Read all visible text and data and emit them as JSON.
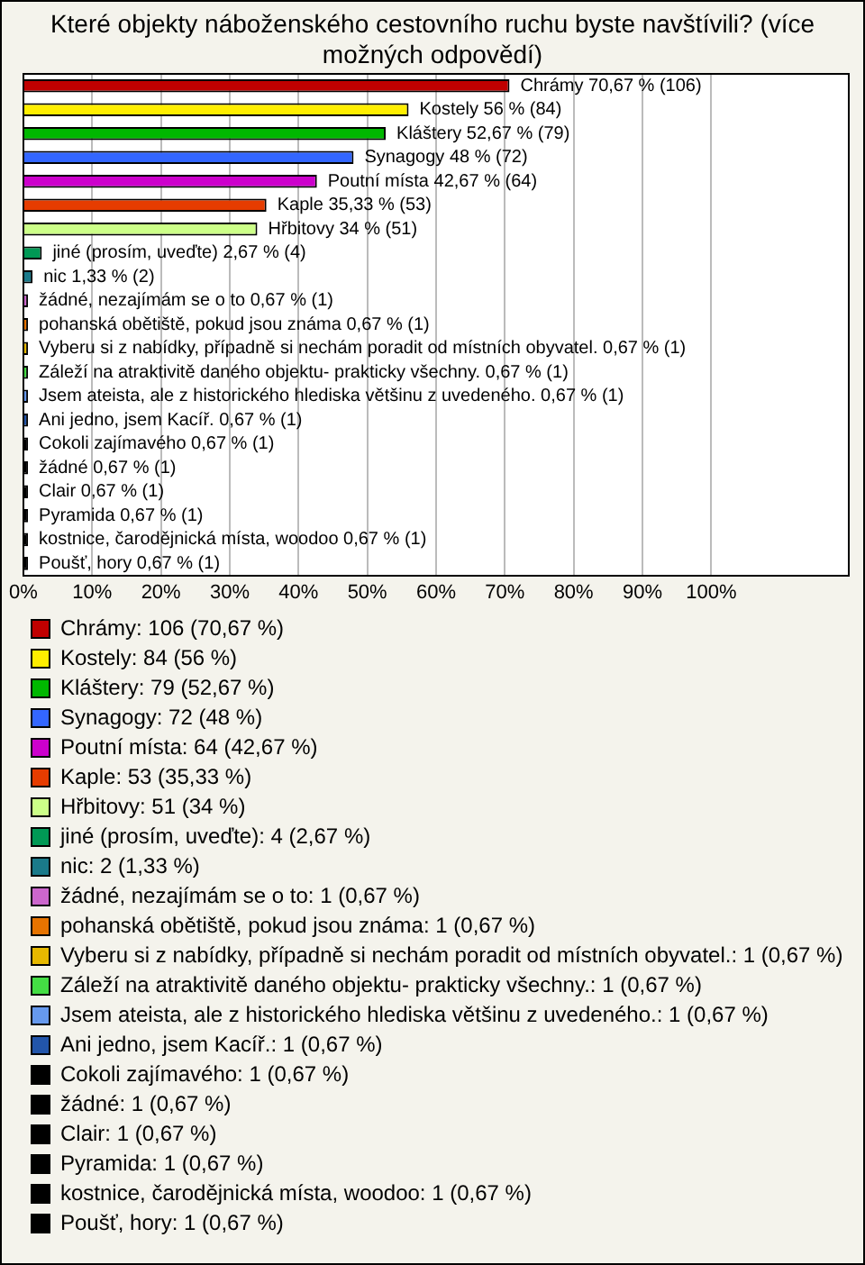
{
  "chart_data": {
    "type": "bar",
    "orientation": "horizontal",
    "stacked": true,
    "title": "Které objekty náboženského cestovního ruchu byste navštívili? (více možných odpovědí)",
    "categories": [
      null,
      null,
      null,
      null,
      null,
      null,
      null,
      null,
      null,
      null,
      null,
      null,
      null,
      null,
      null,
      null,
      null,
      null,
      null,
      null,
      null
    ],
    "series": [
      {
        "name": "Chrámy: 106 (70,67 %)",
        "color": "#c00000",
        "values": [
          70.67,
          null,
          null,
          null,
          null,
          null,
          null,
          null,
          null,
          null,
          null,
          null,
          null,
          null,
          null,
          null,
          null,
          null,
          null,
          null,
          null
        ],
        "value_labels": [
          "Chrámy 70,67 % (106)",
          null,
          null,
          null,
          null,
          null,
          null,
          null,
          null,
          null,
          null,
          null,
          null,
          null,
          null,
          null,
          null,
          null,
          null,
          null,
          null
        ]
      },
      {
        "name": "Kostely: 84 (56 %)",
        "color": "#ffee00",
        "values": [
          null,
          56,
          null,
          null,
          null,
          null,
          null,
          null,
          null,
          null,
          null,
          null,
          null,
          null,
          null,
          null,
          null,
          null,
          null,
          null,
          null
        ],
        "value_labels": [
          null,
          "Kostely 56 % (84)",
          null,
          null,
          null,
          null,
          null,
          null,
          null,
          null,
          null,
          null,
          null,
          null,
          null,
          null,
          null,
          null,
          null,
          null,
          null
        ]
      },
      {
        "name": "Kláštery: 79 (52,67 %)",
        "color": "#00b800",
        "values": [
          null,
          null,
          52.67,
          null,
          null,
          null,
          null,
          null,
          null,
          null,
          null,
          null,
          null,
          null,
          null,
          null,
          null,
          null,
          null,
          null,
          null
        ],
        "value_labels": [
          null,
          null,
          "Kláštery 52,67 % (79)",
          null,
          null,
          null,
          null,
          null,
          null,
          null,
          null,
          null,
          null,
          null,
          null,
          null,
          null,
          null,
          null,
          null,
          null
        ]
      },
      {
        "name": "Synagogy: 72 (48 %)",
        "color": "#3366ff",
        "values": [
          null,
          null,
          null,
          48,
          null,
          null,
          null,
          null,
          null,
          null,
          null,
          null,
          null,
          null,
          null,
          null,
          null,
          null,
          null,
          null,
          null
        ],
        "value_labels": [
          null,
          null,
          null,
          "Synagogy 48 % (72)",
          null,
          null,
          null,
          null,
          null,
          null,
          null,
          null,
          null,
          null,
          null,
          null,
          null,
          null,
          null,
          null,
          null
        ]
      },
      {
        "name": "Poutní místa: 64 (42,67 %)",
        "color": "#cc00cc",
        "values": [
          null,
          null,
          null,
          null,
          42.67,
          null,
          null,
          null,
          null,
          null,
          null,
          null,
          null,
          null,
          null,
          null,
          null,
          null,
          null,
          null,
          null
        ],
        "value_labels": [
          null,
          null,
          null,
          null,
          "Poutní místa 42,67 % (64)",
          null,
          null,
          null,
          null,
          null,
          null,
          null,
          null,
          null,
          null,
          null,
          null,
          null,
          null,
          null,
          null
        ]
      },
      {
        "name": "Kaple: 53 (35,33 %)",
        "color": "#e63c00",
        "values": [
          null,
          null,
          null,
          null,
          null,
          35.33,
          null,
          null,
          null,
          null,
          null,
          null,
          null,
          null,
          null,
          null,
          null,
          null,
          null,
          null,
          null
        ],
        "value_labels": [
          null,
          null,
          null,
          null,
          null,
          "Kaple 35,33 % (53)",
          null,
          null,
          null,
          null,
          null,
          null,
          null,
          null,
          null,
          null,
          null,
          null,
          null,
          null,
          null
        ]
      },
      {
        "name": "Hřbitovy: 51 (34 %)",
        "color": "#ccff88",
        "values": [
          null,
          null,
          null,
          null,
          null,
          null,
          34,
          null,
          null,
          null,
          null,
          null,
          null,
          null,
          null,
          null,
          null,
          null,
          null,
          null,
          null
        ],
        "value_labels": [
          null,
          null,
          null,
          null,
          null,
          null,
          "Hřbitovy 34 % (51)",
          null,
          null,
          null,
          null,
          null,
          null,
          null,
          null,
          null,
          null,
          null,
          null,
          null,
          null
        ]
      },
      {
        "name": "jiné (prosím, uveďte): 4 (2,67 %)",
        "color": "#009955",
        "values": [
          null,
          null,
          null,
          null,
          null,
          null,
          null,
          2.67,
          null,
          null,
          null,
          null,
          null,
          null,
          null,
          null,
          null,
          null,
          null,
          null,
          null
        ],
        "value_labels": [
          null,
          null,
          null,
          null,
          null,
          null,
          null,
          "jiné (prosím, uveďte) 2,67 % (4)",
          null,
          null,
          null,
          null,
          null,
          null,
          null,
          null,
          null,
          null,
          null,
          null,
          null
        ]
      },
      {
        "name": "nic: 2 (1,33 %)",
        "color": "#1a7a8a",
        "values": [
          null,
          null,
          null,
          null,
          null,
          null,
          null,
          null,
          1.33,
          null,
          null,
          null,
          null,
          null,
          null,
          null,
          null,
          null,
          null,
          null,
          null
        ],
        "value_labels": [
          null,
          null,
          null,
          null,
          null,
          null,
          null,
          null,
          "nic 1,33 % (2)",
          null,
          null,
          null,
          null,
          null,
          null,
          null,
          null,
          null,
          null,
          null,
          null
        ]
      },
      {
        "name": "žádné, nezajímám se o to: 1 (0,67 %)",
        "color": "#cc66cc",
        "values": [
          null,
          null,
          null,
          null,
          null,
          null,
          null,
          null,
          null,
          0.67,
          null,
          null,
          null,
          null,
          null,
          null,
          null,
          null,
          null,
          null,
          null
        ],
        "value_labels": [
          null,
          null,
          null,
          null,
          null,
          null,
          null,
          null,
          null,
          "žádné, nezajímám se o to 0,67 % (1)",
          null,
          null,
          null,
          null,
          null,
          null,
          null,
          null,
          null,
          null,
          null
        ]
      },
      {
        "name": "pohanská obětiště, pokud jsou známa: 1 (0,67 %)",
        "color": "#e67300",
        "values": [
          null,
          null,
          null,
          null,
          null,
          null,
          null,
          null,
          null,
          null,
          0.67,
          null,
          null,
          null,
          null,
          null,
          null,
          null,
          null,
          null,
          null
        ],
        "value_labels": [
          null,
          null,
          null,
          null,
          null,
          null,
          null,
          null,
          null,
          null,
          "pohanská obětiště, pokud jsou známa 0,67 % (1)",
          null,
          null,
          null,
          null,
          null,
          null,
          null,
          null,
          null,
          null
        ]
      },
      {
        "name": "Vyberu si z nabídky, případně si nechám poradit od místních obyvatel.: 1 (0,67 %)",
        "color": "#e6b800",
        "values": [
          null,
          null,
          null,
          null,
          null,
          null,
          null,
          null,
          null,
          null,
          null,
          0.67,
          null,
          null,
          null,
          null,
          null,
          null,
          null,
          null,
          null
        ],
        "value_labels": [
          null,
          null,
          null,
          null,
          null,
          null,
          null,
          null,
          null,
          null,
          null,
          "Vyberu si z nabídky, případně si nechám poradit od místních obyvatel. 0,67 % (1)",
          null,
          null,
          null,
          null,
          null,
          null,
          null,
          null,
          null
        ]
      },
      {
        "name": "Záleží na atraktivitě daného objektu- prakticky všechny.: 1 (0,67 %)",
        "color": "#44dd44",
        "values": [
          null,
          null,
          null,
          null,
          null,
          null,
          null,
          null,
          null,
          null,
          null,
          null,
          0.67,
          null,
          null,
          null,
          null,
          null,
          null,
          null,
          null
        ],
        "value_labels": [
          null,
          null,
          null,
          null,
          null,
          null,
          null,
          null,
          null,
          null,
          null,
          null,
          "Záleží na atraktivitě daného objektu- prakticky všechny. 0,67 % (1)",
          null,
          null,
          null,
          null,
          null,
          null,
          null,
          null
        ]
      },
      {
        "name": "Jsem ateista, ale z historického hlediska většinu z uvedeného.: 1 (0,67 %)",
        "color": "#6699ee",
        "values": [
          null,
          null,
          null,
          null,
          null,
          null,
          null,
          null,
          null,
          null,
          null,
          null,
          null,
          0.67,
          null,
          null,
          null,
          null,
          null,
          null,
          null
        ],
        "value_labels": [
          null,
          null,
          null,
          null,
          null,
          null,
          null,
          null,
          null,
          null,
          null,
          null,
          null,
          "Jsem ateista, ale z historického hlediska většinu z uvedeného. 0,67 % (1)",
          null,
          null,
          null,
          null,
          null,
          null,
          null
        ]
      },
      {
        "name": "Ani jedno, jsem Kacíř.: 1 (0,67 %)",
        "color": "#2255aa",
        "values": [
          null,
          null,
          null,
          null,
          null,
          null,
          null,
          null,
          null,
          null,
          null,
          null,
          null,
          null,
          0.67,
          null,
          null,
          null,
          null,
          null,
          null
        ],
        "value_labels": [
          null,
          null,
          null,
          null,
          null,
          null,
          null,
          null,
          null,
          null,
          null,
          null,
          null,
          null,
          "Ani jedno, jsem Kacíř. 0,67 % (1)",
          null,
          null,
          null,
          null,
          null,
          null
        ]
      },
      {
        "name": "Cokoli zajímavého: 1 (0,67 %)",
        "color": "#000000",
        "values": [
          null,
          null,
          null,
          null,
          null,
          null,
          null,
          null,
          null,
          null,
          null,
          null,
          null,
          null,
          null,
          0.67,
          null,
          null,
          null,
          null,
          null
        ],
        "value_labels": [
          null,
          null,
          null,
          null,
          null,
          null,
          null,
          null,
          null,
          null,
          null,
          null,
          null,
          null,
          null,
          "Cokoli zajímavého 0,67 % (1)",
          null,
          null,
          null,
          null,
          null
        ]
      },
      {
        "name": "žádné: 1 (0,67 %)",
        "color": "#000000",
        "values": [
          null,
          null,
          null,
          null,
          null,
          null,
          null,
          null,
          null,
          null,
          null,
          null,
          null,
          null,
          null,
          null,
          0.67,
          null,
          null,
          null,
          null
        ],
        "value_labels": [
          null,
          null,
          null,
          null,
          null,
          null,
          null,
          null,
          null,
          null,
          null,
          null,
          null,
          null,
          null,
          null,
          "žádné 0,67 % (1)",
          null,
          null,
          null,
          null
        ]
      },
      {
        "name": "Clair: 1 (0,67 %)",
        "color": "#000000",
        "values": [
          null,
          null,
          null,
          null,
          null,
          null,
          null,
          null,
          null,
          null,
          null,
          null,
          null,
          null,
          null,
          null,
          null,
          0.67,
          null,
          null,
          null
        ],
        "value_labels": [
          null,
          null,
          null,
          null,
          null,
          null,
          null,
          null,
          null,
          null,
          null,
          null,
          null,
          null,
          null,
          null,
          null,
          "Clair 0,67 % (1)",
          null,
          null,
          null
        ]
      },
      {
        "name": "Pyramida: 1 (0,67 %)",
        "color": "#000000",
        "values": [
          null,
          null,
          null,
          null,
          null,
          null,
          null,
          null,
          null,
          null,
          null,
          null,
          null,
          null,
          null,
          null,
          null,
          null,
          0.67,
          null,
          null
        ],
        "value_labels": [
          null,
          null,
          null,
          null,
          null,
          null,
          null,
          null,
          null,
          null,
          null,
          null,
          null,
          null,
          null,
          null,
          null,
          null,
          "Pyramida 0,67 % (1)",
          null,
          null
        ]
      },
      {
        "name": "kostnice, čarodějnická místa, woodoo: 1 (0,67 %)",
        "color": "#000000",
        "values": [
          null,
          null,
          null,
          null,
          null,
          null,
          null,
          null,
          null,
          null,
          null,
          null,
          null,
          null,
          null,
          null,
          null,
          null,
          null,
          0.67,
          null
        ],
        "value_labels": [
          null,
          null,
          null,
          null,
          null,
          null,
          null,
          null,
          null,
          null,
          null,
          null,
          null,
          null,
          null,
          null,
          null,
          null,
          null,
          "kostnice, čarodějnická místa, woodoo 0,67 % (1)",
          null
        ]
      },
      {
        "name": "Poušť, hory: 1 (0,67 %)",
        "color": "#000000",
        "values": [
          null,
          null,
          null,
          null,
          null,
          null,
          null,
          null,
          null,
          null,
          null,
          null,
          null,
          null,
          null,
          null,
          null,
          null,
          null,
          null,
          0.67
        ],
        "value_labels": [
          null,
          null,
          null,
          null,
          null,
          null,
          null,
          null,
          null,
          null,
          null,
          null,
          null,
          null,
          null,
          null,
          null,
          null,
          null,
          null,
          "Poušť, hory 0,67 % (1)"
        ]
      }
    ],
    "xlim": [
      0,
      120
    ],
    "xticks": [
      {
        "value": 0,
        "label": "0%"
      },
      {
        "value": 10,
        "label": "10%"
      },
      {
        "value": 20,
        "label": "20%"
      },
      {
        "value": 30,
        "label": "30%"
      },
      {
        "value": 40,
        "label": "40%"
      },
      {
        "value": 50,
        "label": "50%"
      },
      {
        "value": 60,
        "label": "60%"
      },
      {
        "value": 70,
        "label": "70%"
      },
      {
        "value": 80,
        "label": "80%"
      },
      {
        "value": 90,
        "label": "90%"
      },
      {
        "value": 100,
        "label": "100%"
      }
    ],
    "grid": "x",
    "legend": "bottom",
    "tick_labels": "x"
  }
}
